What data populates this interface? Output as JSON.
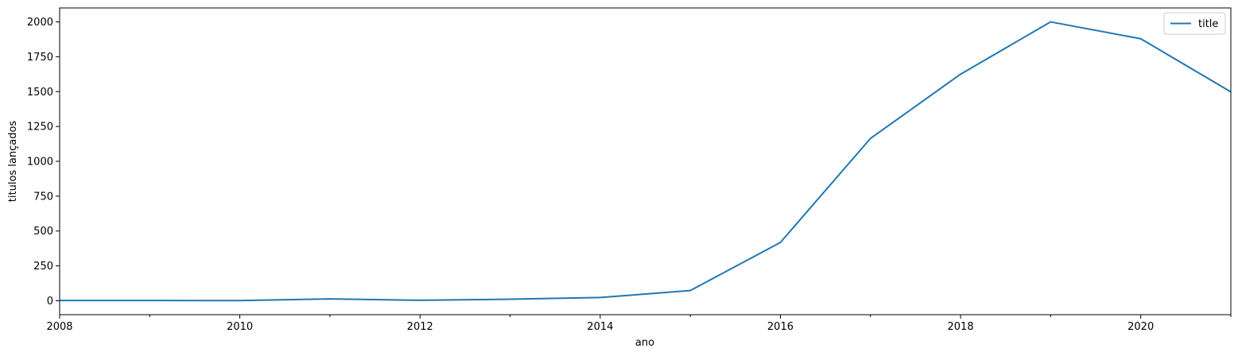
{
  "chart_data": {
    "type": "line",
    "title": "",
    "xlabel": "ano",
    "ylabel": "titulos lançados",
    "xlim": [
      2008,
      2021
    ],
    "ylim": [
      -100,
      2100
    ],
    "x": [
      2008,
      2009,
      2010,
      2011,
      2012,
      2013,
      2014,
      2015,
      2016,
      2017,
      2018,
      2019,
      2020,
      2021
    ],
    "series": [
      {
        "name": "title",
        "color": "#1f77b4",
        "values": [
          2,
          2,
          1,
          13,
          3,
          11,
          23,
          73,
          418,
          1164,
          1625,
          2000,
          1879,
          1498
        ]
      }
    ],
    "x_major_ticks": [
      2008,
      2010,
      2012,
      2014,
      2016,
      2018,
      2020
    ],
    "x_minor_ticks": [
      2009,
      2011,
      2013,
      2015,
      2017,
      2019,
      2021
    ],
    "y_ticks": [
      0,
      250,
      500,
      750,
      1000,
      1250,
      1500,
      1750,
      2000
    ],
    "legend": {
      "position": "top-right",
      "entries": [
        "title"
      ]
    },
    "grid": false
  }
}
